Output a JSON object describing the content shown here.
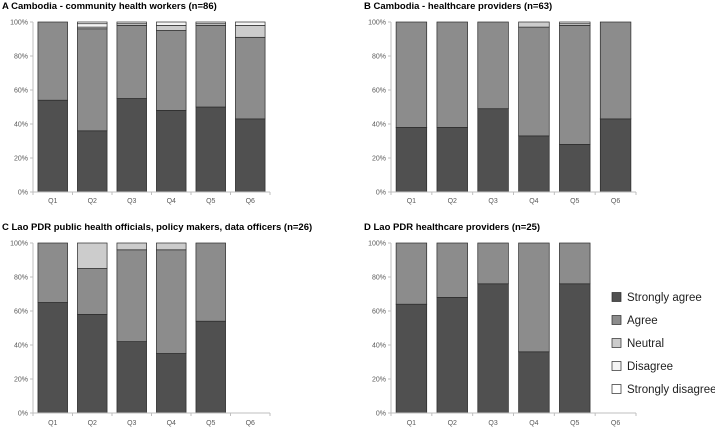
{
  "chart_data": [
    {
      "type": "bar",
      "stacked": true,
      "title": "A  Cambodia - community health workers (n=86)",
      "categories": [
        "Q1",
        "Q2",
        "Q3",
        "Q4",
        "Q5",
        "Q6"
      ],
      "y_ticks": [
        "0%",
        "20%",
        "40%",
        "60%",
        "80%",
        "100%"
      ],
      "ylim": [
        0,
        100
      ],
      "series": [
        {
          "name": "Strongly agree",
          "values": [
            54,
            36,
            55,
            48,
            50,
            43
          ]
        },
        {
          "name": "Agree",
          "values": [
            46,
            60,
            43,
            47,
            48,
            48
          ]
        },
        {
          "name": "Neutral",
          "values": [
            0,
            1,
            1,
            3,
            1,
            7
          ]
        },
        {
          "name": "Disagree",
          "values": [
            0,
            2,
            1,
            2,
            1,
            2
          ]
        },
        {
          "name": "Strongly disagree",
          "values": [
            0,
            1,
            0,
            0,
            0,
            0
          ]
        }
      ]
    },
    {
      "type": "bar",
      "stacked": true,
      "title": "B  Cambodia - healthcare providers (n=63)",
      "categories": [
        "Q1",
        "Q2",
        "Q3",
        "Q4",
        "Q5",
        "Q6"
      ],
      "y_ticks": [
        "0%",
        "20%",
        "40%",
        "60%",
        "80%",
        "100%"
      ],
      "ylim": [
        0,
        100
      ],
      "series": [
        {
          "name": "Strongly agree",
          "values": [
            38,
            38,
            49,
            33,
            28,
            43
          ]
        },
        {
          "name": "Agree",
          "values": [
            62,
            62,
            51,
            64,
            70,
            57
          ]
        },
        {
          "name": "Neutral",
          "values": [
            0,
            0,
            0,
            3,
            1,
            0
          ]
        },
        {
          "name": "Disagree",
          "values": [
            0,
            0,
            0,
            0,
            1,
            0
          ]
        },
        {
          "name": "Strongly disagree",
          "values": [
            0,
            0,
            0,
            0,
            0,
            0
          ]
        }
      ]
    },
    {
      "type": "bar",
      "stacked": true,
      "title": "C  Lao PDR public health officials, policy makers, data officers (n=26)",
      "categories": [
        "Q1",
        "Q2",
        "Q3",
        "Q4",
        "Q5",
        "Q6"
      ],
      "y_ticks": [
        "0%",
        "20%",
        "40%",
        "60%",
        "80%",
        "100%"
      ],
      "ylim": [
        0,
        100
      ],
      "series": [
        {
          "name": "Strongly agree",
          "values": [
            65,
            58,
            42,
            35,
            54,
            0
          ]
        },
        {
          "name": "Agree",
          "values": [
            35,
            27,
            54,
            61,
            46,
            0
          ]
        },
        {
          "name": "Neutral",
          "values": [
            0,
            15,
            4,
            4,
            0,
            0
          ]
        },
        {
          "name": "Disagree",
          "values": [
            0,
            0,
            0,
            0,
            0,
            0
          ]
        },
        {
          "name": "Strongly disagree",
          "values": [
            0,
            0,
            0,
            0,
            0,
            0
          ]
        }
      ]
    },
    {
      "type": "bar",
      "stacked": true,
      "title": "D  Lao PDR healthcare providers (n=25)",
      "categories": [
        "Q1",
        "Q2",
        "Q3",
        "Q4",
        "Q5",
        "Q6"
      ],
      "y_ticks": [
        "0%",
        "20%",
        "40%",
        "60%",
        "80%",
        "100%"
      ],
      "ylim": [
        0,
        100
      ],
      "series": [
        {
          "name": "Strongly agree",
          "values": [
            64,
            68,
            76,
            36,
            76,
            0
          ]
        },
        {
          "name": "Agree",
          "values": [
            36,
            32,
            24,
            64,
            24,
            0
          ]
        },
        {
          "name": "Neutral",
          "values": [
            0,
            0,
            0,
            0,
            0,
            0
          ]
        },
        {
          "name": "Disagree",
          "values": [
            0,
            0,
            0,
            0,
            0,
            0
          ]
        },
        {
          "name": "Strongly disagree",
          "values": [
            0,
            0,
            0,
            0,
            0,
            0
          ]
        }
      ]
    }
  ],
  "legend": {
    "entries": [
      "Strongly agree",
      "Agree",
      "Neutral",
      "Disagree",
      "Strongly disagree"
    ],
    "placement": "right of panel D"
  },
  "colors": {
    "Strongly agree": "#505050",
    "Agree": "#8c8c8c",
    "Neutral": "#cccccc",
    "Disagree": "#f4f4f4",
    "Strongly disagree": "#ffffff",
    "axis": "#bfbfbf",
    "bar_outline": "#2a2a2a"
  }
}
